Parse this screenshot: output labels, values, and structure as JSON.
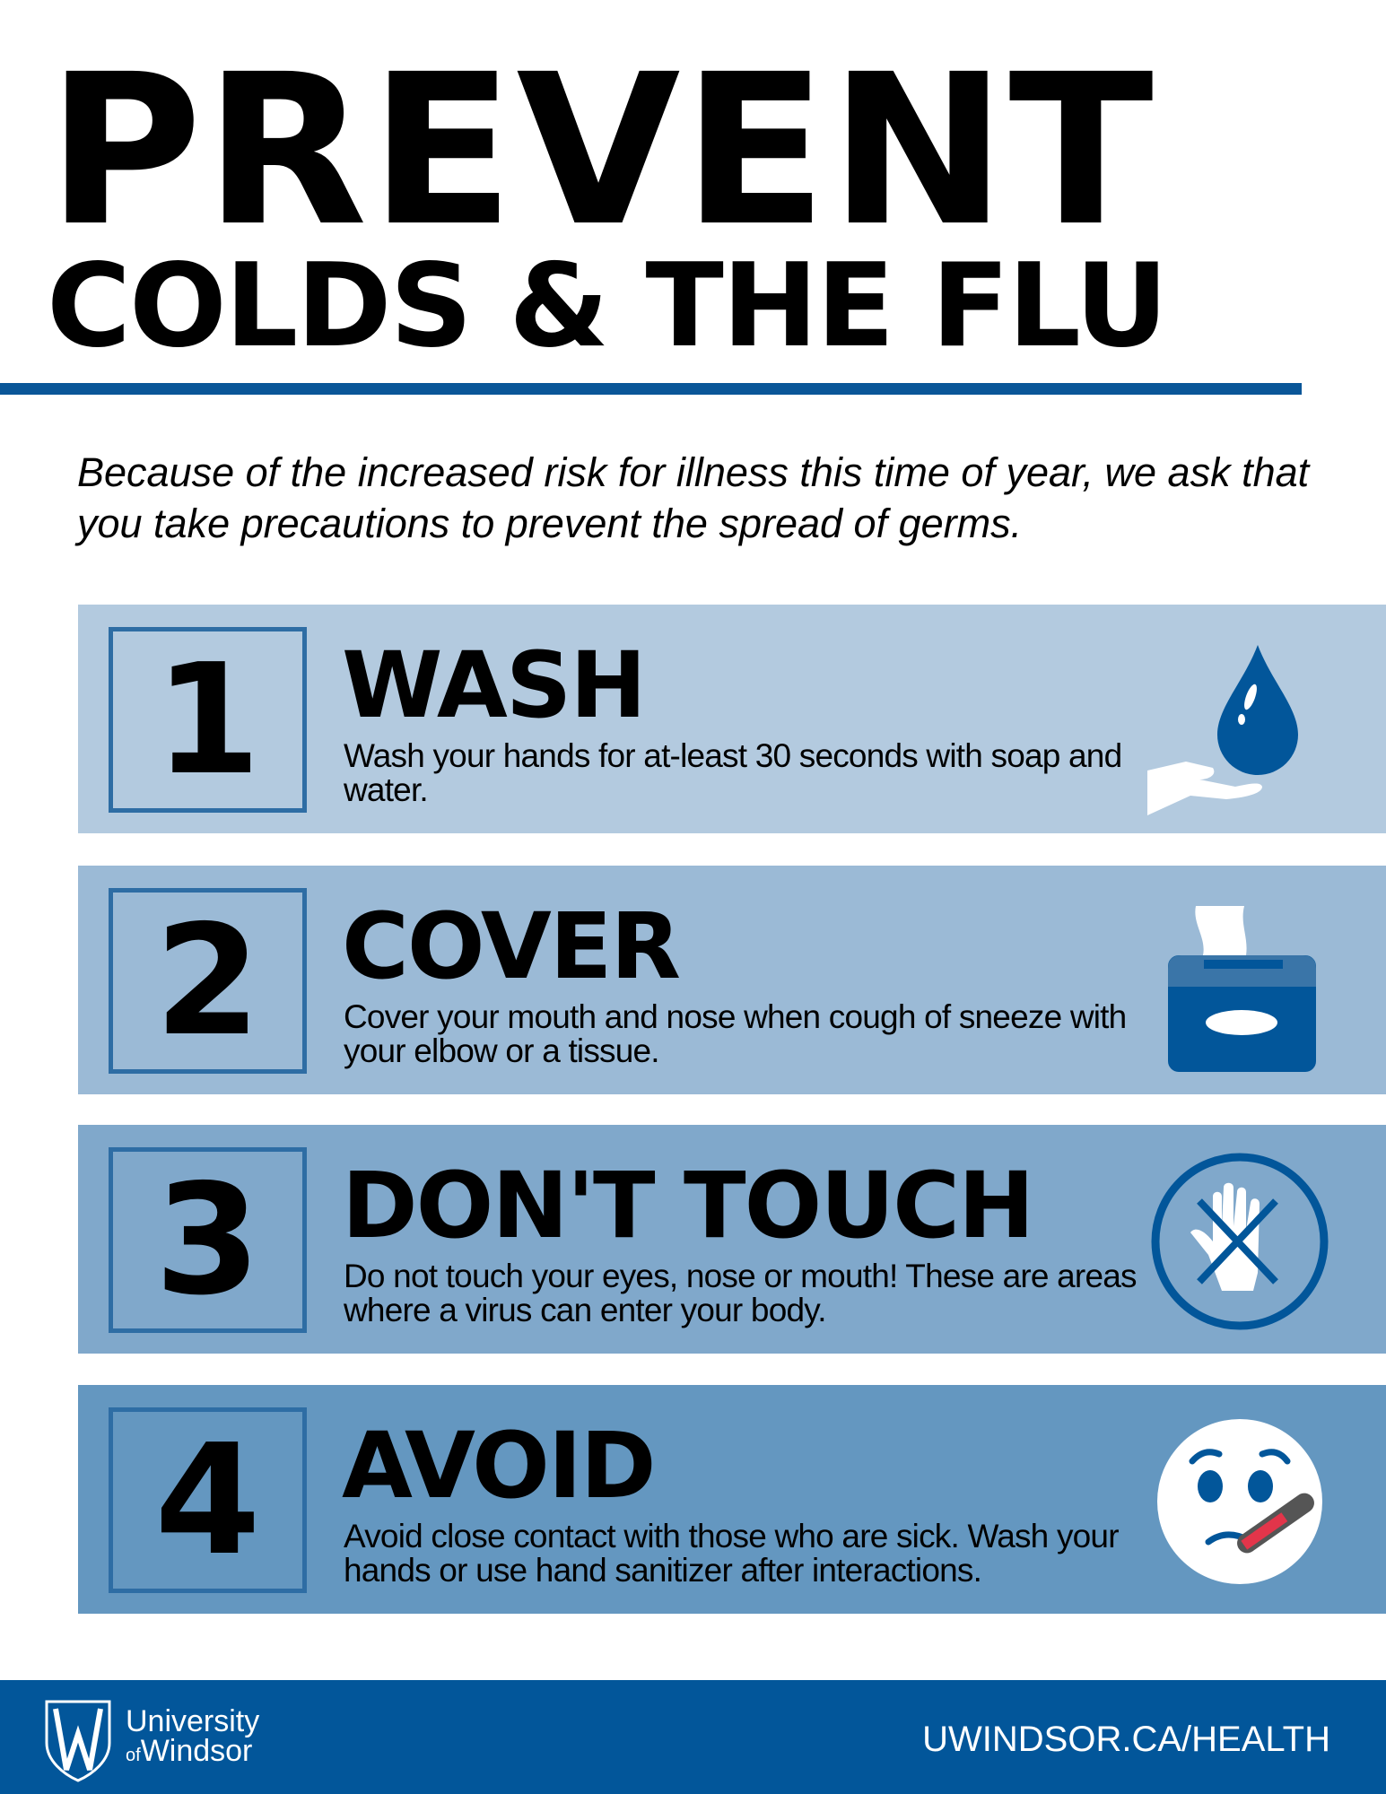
{
  "title": {
    "line1": "PREVENT",
    "line2": "COLDS & THE FLU"
  },
  "intro": "Because of the increased risk for illness this time of year, we ask that you take precautions to prevent the spread of germs.",
  "steps": [
    {
      "number": "1",
      "heading": "WASH",
      "text": "Wash your hands for at-least 30 seconds with soap and water.",
      "icon": "hand-water-drop-icon",
      "color": "#b3cadf"
    },
    {
      "number": "2",
      "heading": "COVER",
      "text": "Cover your mouth and nose when cough of sneeze with your elbow or a tissue.",
      "icon": "tissue-box-icon",
      "color": "#9bbad6"
    },
    {
      "number": "3",
      "heading": "DON'T TOUCH",
      "text": "Do not touch your eyes, nose or mouth! These are areas where a virus can enter your body.",
      "icon": "no-touch-hand-icon",
      "color": "#80a8cb"
    },
    {
      "number": "4",
      "heading": "AVOID",
      "text": "Avoid close contact with those who are sick. Wash your hands or use hand sanitizer after interactions.",
      "icon": "sick-face-thermometer-icon",
      "color": "#6497c0"
    }
  ],
  "footer": {
    "logo_line1": "University",
    "logo_of": "of",
    "logo_line2": "Windsor",
    "url": "UWINDSOR.CA/HEALTH",
    "color": "#02569a"
  },
  "colors": {
    "accent": "#0a5698",
    "box_border": "#2e6da4",
    "icon": "#02569a"
  }
}
